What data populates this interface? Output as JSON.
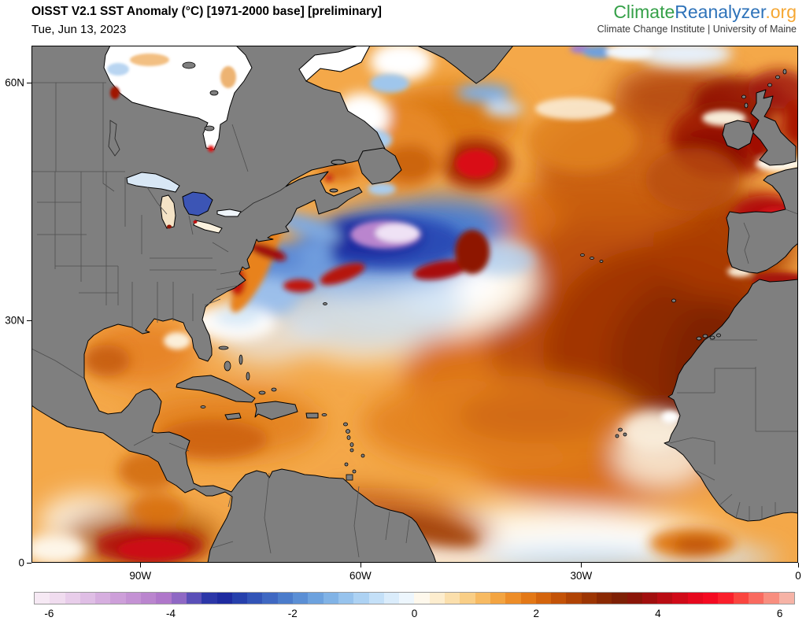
{
  "header": {
    "title": "OISST V2.1 SST Anomaly (°C) [1971-2000 base] [preliminary]",
    "date": "Tue, Jun 13, 2023",
    "logo": {
      "part1": "Climate",
      "part2": "Reanalyzer",
      "part3": ".org",
      "tagline": "Climate Change Institute | University of Maine",
      "colors": {
        "part1": "#35A048",
        "part2": "#2D72B9",
        "part3": "#F5A733"
      }
    }
  },
  "map": {
    "lat_ticks": [
      {
        "label": "60N",
        "pct": 7.2
      },
      {
        "label": "30N",
        "pct": 53.1
      },
      {
        "label": "0",
        "pct": 100
      }
    ],
    "lon_ticks": [
      {
        "label": "90W",
        "pct": 14.2
      },
      {
        "label": "60W",
        "pct": 42.9
      },
      {
        "label": "30W",
        "pct": 71.7
      },
      {
        "label": "0",
        "pct": 100
      }
    ],
    "land_color": "#7F7F7F",
    "coast_color": "#000000",
    "border_color": "#4F4F4F",
    "ice_color": "#FFFFFF"
  },
  "colorbar": {
    "min": -6.25,
    "max": 6.25,
    "cell_width_c": 0.25,
    "ticks": [
      -6,
      -4,
      -2,
      0,
      2,
      4,
      6
    ],
    "cells": [
      "#F6E9F4",
      "#F0DCEF",
      "#E8CDEA",
      "#DFBEE5",
      "#D6AEDF",
      "#CD9FD9",
      "#C492D4",
      "#BA85CE",
      "#AF77CA",
      "#8F68C4",
      "#5A4FB8",
      "#2C37A8",
      "#1E2BA0",
      "#2640AC",
      "#3254B7",
      "#3F68C2",
      "#4B7CCB",
      "#5B8FD5",
      "#6DA2DE",
      "#81B3E6",
      "#97C3ED",
      "#ADD2F3",
      "#C4E0F8",
      "#DAECFB",
      "#EDF6FD",
      "#FEF8EC",
      "#FDEDCE",
      "#FBDFAC",
      "#F9CE86",
      "#F7BA62",
      "#F3A441",
      "#ED8D28",
      "#E37816",
      "#D4640D",
      "#C35207",
      "#B04304",
      "#9C3503",
      "#8A2903",
      "#7E2005",
      "#8A1508",
      "#A10F0E",
      "#B90C13",
      "#D00A18",
      "#E6081D",
      "#F40A21",
      "#FA1F2B",
      "#FA453F",
      "#F96A5F",
      "#F88E7F",
      "#F6B3A6"
    ]
  },
  "chart_data": {
    "type": "heatmap",
    "title": "OISST V2.1 SST Anomaly (°C) [1971-2000 base] [preliminary]",
    "date": "Tue, Jun 13, 2023",
    "dataset": "OISST V2.1",
    "status": "preliminary",
    "variable": "Sea surface temperature anomaly (°C) relative to 1971-2000 baseline",
    "region": "North Atlantic (approx. 105W-0, 0-65N)",
    "x_tick_labels": [
      "90W",
      "60W",
      "30W",
      "0"
    ],
    "y_tick_labels": [
      "60N",
      "30N",
      "0"
    ],
    "colorbar_range": [
      -6.25,
      6.25
    ],
    "colorbar_tick_values": [
      -6,
      -4,
      -2,
      0,
      2,
      4,
      6
    ],
    "scale_stops": [
      [
        -6,
        "#F0DCEF"
      ],
      [
        -4,
        "#9F6FC6"
      ],
      [
        -3,
        "#1E2BA0"
      ],
      [
        -2,
        "#4B7CCB"
      ],
      [
        -1,
        "#97C3ED"
      ],
      [
        0,
        "#FFFFFF"
      ],
      [
        1,
        "#F7BA62"
      ],
      [
        2,
        "#E37816"
      ],
      [
        3,
        "#9C3503"
      ],
      [
        4,
        "#A10F0E"
      ],
      [
        5,
        "#F40A21"
      ],
      [
        6,
        "#F6B3A6"
      ]
    ],
    "readings": [
      {
        "area": "NW Atlantic cold pool south of Nova Scotia (~55W, 40N), lavender core",
        "anomaly_c": -6
      },
      {
        "area": "Cold band surrounding core (Gulf Stream shutoff zone)",
        "anomaly_c": -3.5
      },
      {
        "area": "US East Coast shelf warm strip",
        "anomaly_c": 2.5
      },
      {
        "area": "Gulf of Mexico",
        "anomaly_c": 1.5
      },
      {
        "area": "Caribbean Sea",
        "anomaly_c": 1.5
      },
      {
        "area": "Bahamas / north of Cuba neutral patch",
        "anomaly_c": 0
      },
      {
        "area": "Central subtropical gyre (~50W, 25N)",
        "anomaly_c": 0.5
      },
      {
        "area": "Eastern subtropical Atlantic broad warm pool (10-35W)",
        "anomaly_c": 3
      },
      {
        "area": "NW Africa / Canary coast",
        "anomaly_c": 3.5
      },
      {
        "area": "West of Ireland and UK shelf",
        "anomaly_c": 4.5
      },
      {
        "area": "Bay of Biscay",
        "anomaly_c": 4.5
      },
      {
        "area": "North Sea east of Scotland",
        "anomaly_c": 4
      },
      {
        "area": "Red spot south of Greenland (~42W, 55N)",
        "anomaly_c": 4.5
      },
      {
        "area": "Subpolar NW Atlantic (50-60N)",
        "anomaly_c": 2
      },
      {
        "area": "Hudson Bay / Labrador ice-edge water",
        "anomaly_c": 0
      },
      {
        "area": "Equatorial Atlantic east of 25W",
        "anomaly_c": 0.5
      },
      {
        "area": "Offshore Guyana / NE Brazil band",
        "anomaly_c": 2.5
      },
      {
        "area": "Eastern tropical Pacific near 90W (El Niño)",
        "anomaly_c": 4
      },
      {
        "area": "Alboran Sea / Gibraltar approach",
        "anomaly_c": 3.5
      }
    ]
  }
}
